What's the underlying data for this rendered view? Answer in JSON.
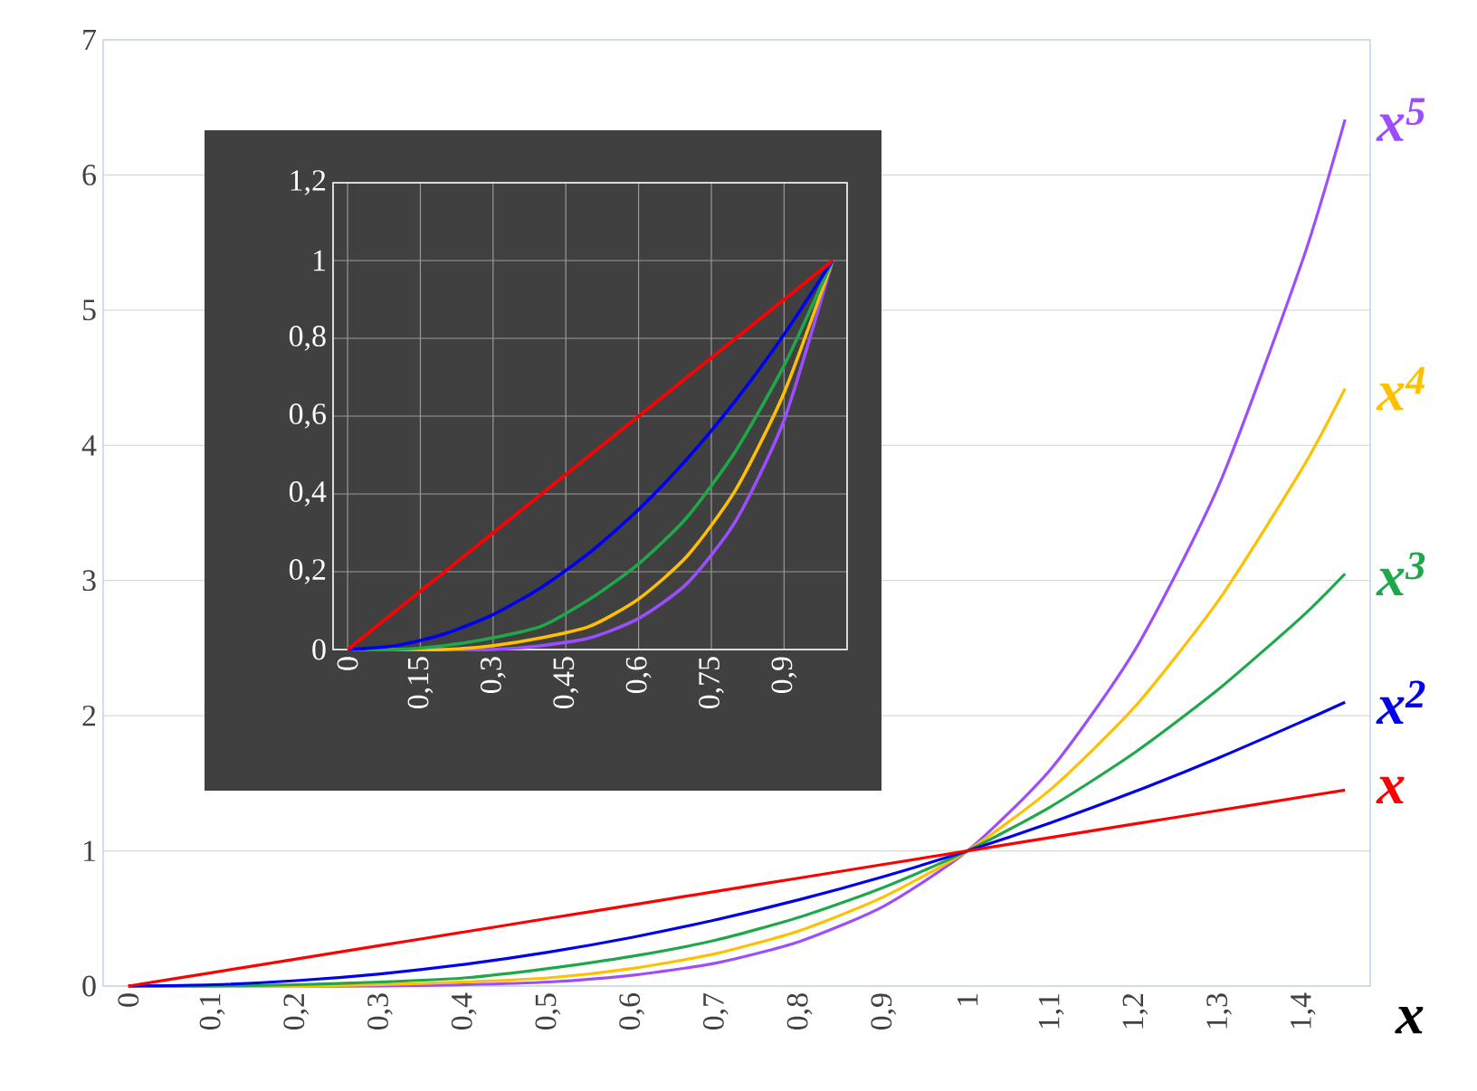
{
  "chart_data": [
    {
      "type": "line",
      "xlabel": "x",
      "x": [
        0,
        0.1,
        0.2,
        0.3,
        0.4,
        0.5,
        0.6,
        0.7,
        0.8,
        0.9,
        1,
        1.1,
        1.2,
        1.3,
        1.4,
        1.45
      ],
      "series": [
        {
          "name": "x$^{5}$",
          "color": "#9b4dff",
          "values": [
            0,
            0,
            0,
            0,
            0.01,
            0.03,
            0.08,
            0.17,
            0.33,
            0.59,
            1,
            1.61,
            2.49,
            3.71,
            5.38,
            6.41
          ]
        },
        {
          "name": "x$^{4}$",
          "color": "#ffc000",
          "values": [
            0,
            0,
            0,
            0.01,
            0.03,
            0.06,
            0.13,
            0.24,
            0.41,
            0.66,
            1,
            1.46,
            2.07,
            2.86,
            3.84,
            4.42
          ]
        },
        {
          "name": "x$^{3}$",
          "color": "#1fa84a",
          "values": [
            0,
            0,
            0.01,
            0.03,
            0.06,
            0.13,
            0.22,
            0.34,
            0.51,
            0.73,
            1,
            1.33,
            1.73,
            2.2,
            2.74,
            3.05
          ]
        },
        {
          "name": "x$^{2}$",
          "color": "#0000ee",
          "values": [
            0,
            0.01,
            0.04,
            0.09,
            0.16,
            0.25,
            0.36,
            0.49,
            0.64,
            0.81,
            1,
            1.21,
            1.44,
            1.69,
            1.96,
            2.1
          ]
        },
        {
          "name": "x",
          "color": "#ff0000",
          "values": [
            0,
            0.1,
            0.2,
            0.3,
            0.4,
            0.5,
            0.6,
            0.7,
            0.8,
            0.9,
            1,
            1.1,
            1.2,
            1.3,
            1.4,
            1.45
          ]
        }
      ],
      "xlim": [
        -0.03,
        1.48
      ],
      "ylim": [
        0,
        7
      ],
      "xticks": [
        0,
        {
          "value": 0.1,
          "label": "0,1"
        },
        {
          "value": 0.2,
          "label": "0,2"
        },
        {
          "value": 0.3,
          "label": "0,3"
        },
        {
          "value": 0.4,
          "label": "0,4"
        },
        {
          "value": 0.5,
          "label": "0,5"
        },
        {
          "value": 0.6,
          "label": "0,6"
        },
        {
          "value": 0.7,
          "label": "0,7"
        },
        {
          "value": 0.8,
          "label": "0,8"
        },
        {
          "value": 0.9,
          "label": "0,9"
        },
        1,
        {
          "value": 1.1,
          "label": "1,1"
        },
        {
          "value": 1.2,
          "label": "1,2"
        },
        {
          "value": 1.3,
          "label": "1,3"
        },
        {
          "value": 1.4,
          "label": "1,4"
        }
      ],
      "yticks": [
        0,
        1,
        2,
        3,
        4,
        5,
        6,
        7
      ],
      "grid": "y"
    },
    {
      "type": "line",
      "x": [
        0,
        0.1,
        0.2,
        0.3,
        0.4,
        0.5,
        0.6,
        0.7,
        0.8,
        0.9,
        1
      ],
      "series": [
        {
          "color": "#9b4dff",
          "values": [
            0,
            0,
            0,
            0,
            0.01,
            0.03,
            0.08,
            0.17,
            0.33,
            0.59,
            1
          ]
        },
        {
          "color": "#ffc000",
          "values": [
            0,
            0,
            0,
            0.01,
            0.03,
            0.06,
            0.13,
            0.24,
            0.41,
            0.66,
            1
          ]
        },
        {
          "color": "#1fa84a",
          "values": [
            0,
            0,
            0.01,
            0.03,
            0.06,
            0.13,
            0.22,
            0.34,
            0.51,
            0.73,
            1
          ]
        },
        {
          "color": "#0000ee",
          "values": [
            0,
            0.01,
            0.04,
            0.09,
            0.16,
            0.25,
            0.36,
            0.49,
            0.64,
            0.81,
            1
          ]
        },
        {
          "color": "#ff0000",
          "values": [
            0,
            0.1,
            0.2,
            0.3,
            0.4,
            0.5,
            0.6,
            0.7,
            0.8,
            0.9,
            1
          ]
        }
      ],
      "xlim": [
        -0.03,
        1.03
      ],
      "ylim": [
        0,
        1.2
      ],
      "xticks": [
        0,
        {
          "value": 0.15,
          "label": "0,15"
        },
        {
          "value": 0.3,
          "label": "0,3"
        },
        {
          "value": 0.45,
          "label": "0,45"
        },
        {
          "value": 0.6,
          "label": "0,6"
        },
        {
          "value": 0.75,
          "label": "0,75"
        },
        {
          "value": 0.9,
          "label": "0,9"
        }
      ],
      "yticks": [
        0,
        {
          "value": 0.2,
          "label": "0,2"
        },
        {
          "value": 0.4,
          "label": "0,4"
        },
        {
          "value": 0.6,
          "label": "0,6"
        },
        {
          "value": 0.8,
          "label": "0,8"
        },
        1,
        {
          "value": 1.2,
          "label": "1,2"
        }
      ],
      "grid": true
    }
  ]
}
